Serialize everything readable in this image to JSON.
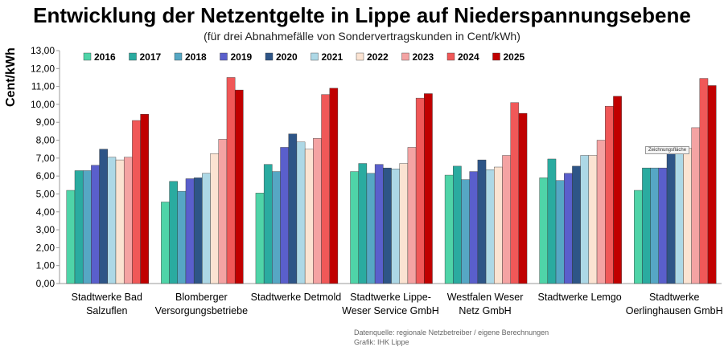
{
  "title": "Entwicklung der Netzentgelte in Lippe auf Niederspannungsebene",
  "subtitle": "(für drei Abnahmefälle von Sondervertragskunden in Cent/kWh)",
  "footer": {
    "source_line1": "Datenquelle: regionale Netzbetreiber / eigene Berechnungen",
    "source_line2": "Grafik: IHK Lippe"
  },
  "tooltip_label": "Zeichnungsfläche",
  "chart_data": {
    "type": "bar",
    "title": "Entwicklung der Netzentgelte in Lippe auf Niederspannungsebene",
    "ylabel": "Cent/kWh",
    "xlabel": "",
    "ylim": [
      0,
      13
    ],
    "ytick_step": 1,
    "ytick_labels": [
      "0,00",
      "1,00",
      "2,00",
      "3,00",
      "4,00",
      "5,00",
      "6,00",
      "7,00",
      "8,00",
      "9,00",
      "10,00",
      "11,00",
      "12,00",
      "13,00"
    ],
    "grid": false,
    "legend_position": "top-left",
    "categories": [
      [
        "Stadtwerke Bad",
        "Salzuflen"
      ],
      [
        "Blomberger",
        "Versorgungsbetriebe"
      ],
      [
        "Stadtwerke Detmold"
      ],
      [
        "Stadtwerke Lippe-",
        "Weser Service GmbH"
      ],
      [
        "Westfalen Weser",
        "Netz GmbH"
      ],
      [
        "Stadtwerke Lemgo"
      ],
      [
        "Stadtwerke",
        "Oerlinghausen GmbH"
      ]
    ],
    "series": [
      {
        "name": "2016",
        "color": "#4fd4a8",
        "values": [
          5.2,
          4.55,
          5.05,
          6.25,
          6.05,
          5.9,
          5.2
        ]
      },
      {
        "name": "2017",
        "color": "#2aaba0",
        "values": [
          6.3,
          5.7,
          6.65,
          6.7,
          6.55,
          6.95,
          6.45
        ]
      },
      {
        "name": "2018",
        "color": "#56a7c4",
        "values": [
          6.3,
          5.15,
          6.25,
          6.15,
          5.8,
          5.75,
          6.45
        ]
      },
      {
        "name": "2019",
        "color": "#5a5fcc",
        "values": [
          6.6,
          5.85,
          7.6,
          6.65,
          6.25,
          6.15,
          6.45
        ]
      },
      {
        "name": "2020",
        "color": "#2e5587",
        "values": [
          7.5,
          5.9,
          8.35,
          6.45,
          6.9,
          6.55,
          7.25
        ]
      },
      {
        "name": "2021",
        "color": "#add8e6",
        "values": [
          7.05,
          6.15,
          7.9,
          6.4,
          6.35,
          7.15,
          7.35
        ]
      },
      {
        "name": "2022",
        "color": "#fbe3d2",
        "values": [
          6.9,
          7.25,
          7.5,
          6.7,
          6.5,
          7.15,
          7.55
        ]
      },
      {
        "name": "2023",
        "color": "#f4a3a3",
        "values": [
          7.05,
          8.05,
          8.1,
          7.6,
          7.15,
          8.0,
          8.7
        ]
      },
      {
        "name": "2024",
        "color": "#f05858",
        "values": [
          9.1,
          11.5,
          10.55,
          10.35,
          10.1,
          9.9,
          11.45
        ]
      },
      {
        "name": "2025",
        "color": "#c00000",
        "values": [
          9.45,
          10.8,
          10.9,
          10.6,
          9.5,
          10.45,
          11.05
        ]
      }
    ]
  }
}
